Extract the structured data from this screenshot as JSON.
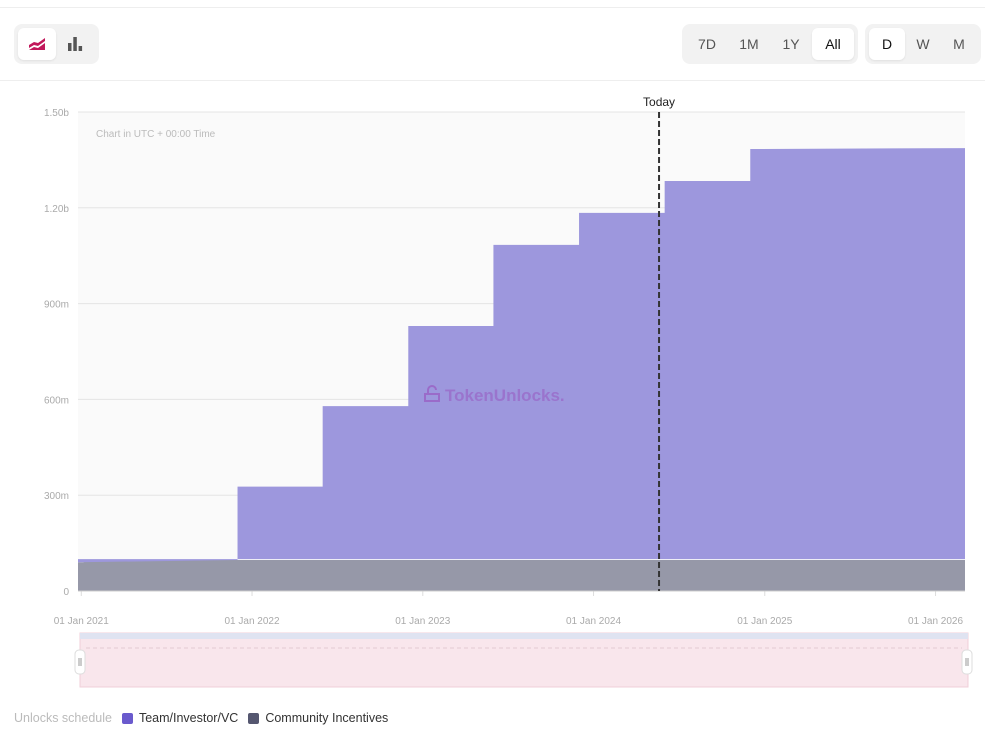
{
  "toolbar": {
    "chart_types": [
      {
        "icon": "area-chart-icon",
        "active": true
      },
      {
        "icon": "bar-chart-icon",
        "active": false
      }
    ],
    "ranges": [
      "7D",
      "1M",
      "1Y",
      "All"
    ],
    "range_selected": "All",
    "intervals": [
      "D",
      "W",
      "M"
    ],
    "interval_selected": "D"
  },
  "colors": {
    "accent": "#c2185b",
    "team_fill": "#9d97dd",
    "community_fill": "#9698a8",
    "team_legend": "#6a5acd",
    "community_legend": "#555770"
  },
  "chart_data": {
    "type": "area",
    "stacked": true,
    "step": true,
    "note": "Chart in UTC + 00:00 Time",
    "watermark": "TokenUnlocks.",
    "today_label": "Today",
    "today_date": "2024-05-20",
    "xlim": [
      "2020-12-25",
      "2026-03-05"
    ],
    "ylim": [
      0,
      1500
    ],
    "y_ticks": [
      {
        "v": 0,
        "label": "0"
      },
      {
        "v": 300,
        "label": "300m"
      },
      {
        "v": 600,
        "label": "600m"
      },
      {
        "v": 900,
        "label": "900m"
      },
      {
        "v": 1200,
        "label": "1.20b"
      },
      {
        "v": 1500,
        "label": "1.50b"
      }
    ],
    "x_ticks": [
      {
        "d": "2021-01-01",
        "label": "01 Jan 2021"
      },
      {
        "d": "2022-01-01",
        "label": "01 Jan 2022"
      },
      {
        "d": "2023-01-01",
        "label": "01 Jan 2023"
      },
      {
        "d": "2024-01-01",
        "label": "01 Jan 2024"
      },
      {
        "d": "2025-01-01",
        "label": "01 Jan 2025"
      },
      {
        "d": "2026-01-01",
        "label": "01 Jan 2026"
      }
    ],
    "grid": true,
    "series": [
      {
        "name": "Community Incentives",
        "points": [
          [
            "2020-12-25",
            90
          ],
          [
            "2021-01-06",
            97
          ],
          [
            "2026-03-05",
            100
          ]
        ]
      },
      {
        "name": "Team/Investor/VC",
        "points": [
          [
            "2020-12-25",
            0
          ],
          [
            "2021-12-01",
            230
          ],
          [
            "2022-06-01",
            482
          ],
          [
            "2022-12-01",
            733
          ],
          [
            "2023-06-01",
            987
          ],
          [
            "2023-12-01",
            1087
          ],
          [
            "2024-06-01",
            1187
          ],
          [
            "2024-12-01",
            1287
          ],
          [
            "2026-03-05",
            1290
          ]
        ]
      }
    ],
    "legend_title": "Unlocks schedule",
    "legend_position": "bottom-left"
  }
}
